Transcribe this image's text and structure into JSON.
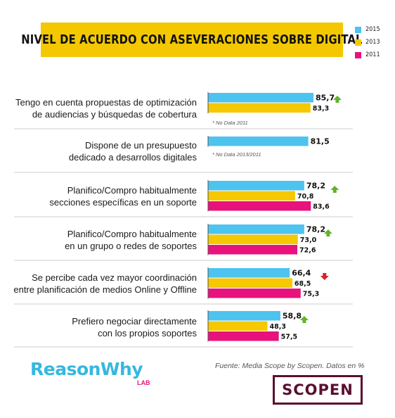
{
  "title": "NIVEL DE ACUERDO CON ASEVERACIONES SOBRE DIGITAL",
  "legend": [
    {
      "label": "2015",
      "color": "#4dc3f0"
    },
    {
      "label": "2013",
      "color": "#f5c800"
    },
    {
      "label": "2011",
      "color": "#e8127c"
    }
  ],
  "colors": {
    "up_arrow": "#62b32a",
    "down_arrow": "#d6232a",
    "separator": "#cccccc",
    "axis": "#555555"
  },
  "chart_data": {
    "type": "bar",
    "orientation": "horizontal",
    "categories": [
      {
        "label_lines": [
          "Tengo en cuenta propuestas de optimización",
          "de audiencias y búsquedas de cobertura"
        ],
        "note": "* No Data 2011",
        "trend": "up"
      },
      {
        "label_lines": [
          "Dispone de un presupuesto",
          "dedicado a desarrollos digitales"
        ],
        "note": "* No Data 2013/2011",
        "trend": null
      },
      {
        "label_lines": [
          "Planifico/Compro habitualmente",
          "secciones específicas en un soporte"
        ],
        "note": "",
        "trend": "up"
      },
      {
        "label_lines": [
          "Planifico/Compro habitualmente",
          "en un grupo o redes de soportes"
        ],
        "note": "",
        "trend": "up"
      },
      {
        "label_lines": [
          "Se percibe cada vez mayor coordinación",
          "entre planificación de medios Online y Offline"
        ],
        "note": "",
        "trend": "down"
      },
      {
        "label_lines": [
          "Prefiero negociar directamente",
          "con los propios soportes"
        ],
        "note": "",
        "trend": "up"
      }
    ],
    "series": [
      {
        "name": "2015",
        "values": [
          85.7,
          81.5,
          78.2,
          78.2,
          66.4,
          58.8
        ],
        "labels": [
          "85,7",
          "81,5",
          "78,2",
          "78,2",
          "66,4",
          "58,8"
        ]
      },
      {
        "name": "2013",
        "values": [
          83.3,
          null,
          70.8,
          73.0,
          68.5,
          48.3
        ],
        "labels": [
          "83,3",
          "",
          "70,8",
          "73,0",
          "68,5",
          "48,3"
        ]
      },
      {
        "name": "2011",
        "values": [
          null,
          null,
          83.6,
          72.6,
          75.3,
          57.5
        ],
        "labels": [
          "",
          "",
          "83,6",
          "72,6",
          "75,3",
          "57,5"
        ]
      }
    ],
    "xlim": [
      0,
      100
    ],
    "grid": false
  },
  "source": "Fuente: Media Scope by Scopen. Datos en %",
  "brand": {
    "reasonwhy": "ReasonWhy",
    "lab": "LAB",
    "scopen": "SCOPEN"
  }
}
